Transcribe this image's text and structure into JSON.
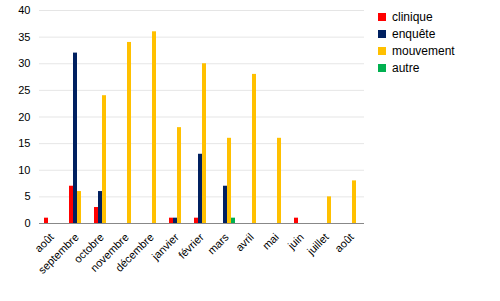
{
  "chart_data": {
    "type": "bar",
    "categories": [
      "août",
      "septembre",
      "octobre",
      "novembre",
      "décembre",
      "janvier",
      "février",
      "mars",
      "avril",
      "mai",
      "juin",
      "juillet",
      "août"
    ],
    "series": [
      {
        "name": "clinique",
        "color": "#ff0000",
        "values": [
          1,
          7,
          3,
          0,
          0,
          1,
          1,
          0,
          0,
          0,
          1,
          0,
          0
        ]
      },
      {
        "name": "enquête",
        "color": "#002060",
        "values": [
          0,
          32,
          6,
          0,
          0,
          1,
          13,
          7,
          0,
          0,
          0,
          0,
          0
        ]
      },
      {
        "name": "mouvement",
        "color": "#ffc000",
        "values": [
          0,
          6,
          24,
          34,
          36,
          18,
          30,
          16,
          28,
          16,
          0,
          5,
          8
        ]
      },
      {
        "name": "autre",
        "color": "#00b050",
        "values": [
          0,
          0,
          0,
          0,
          0,
          0,
          0,
          1,
          0,
          0,
          0,
          0,
          0
        ]
      }
    ],
    "ylim": [
      0,
      40
    ],
    "yticks": [
      0,
      5,
      10,
      15,
      20,
      25,
      30,
      35,
      40
    ],
    "grid": true,
    "legend": "top-right"
  }
}
